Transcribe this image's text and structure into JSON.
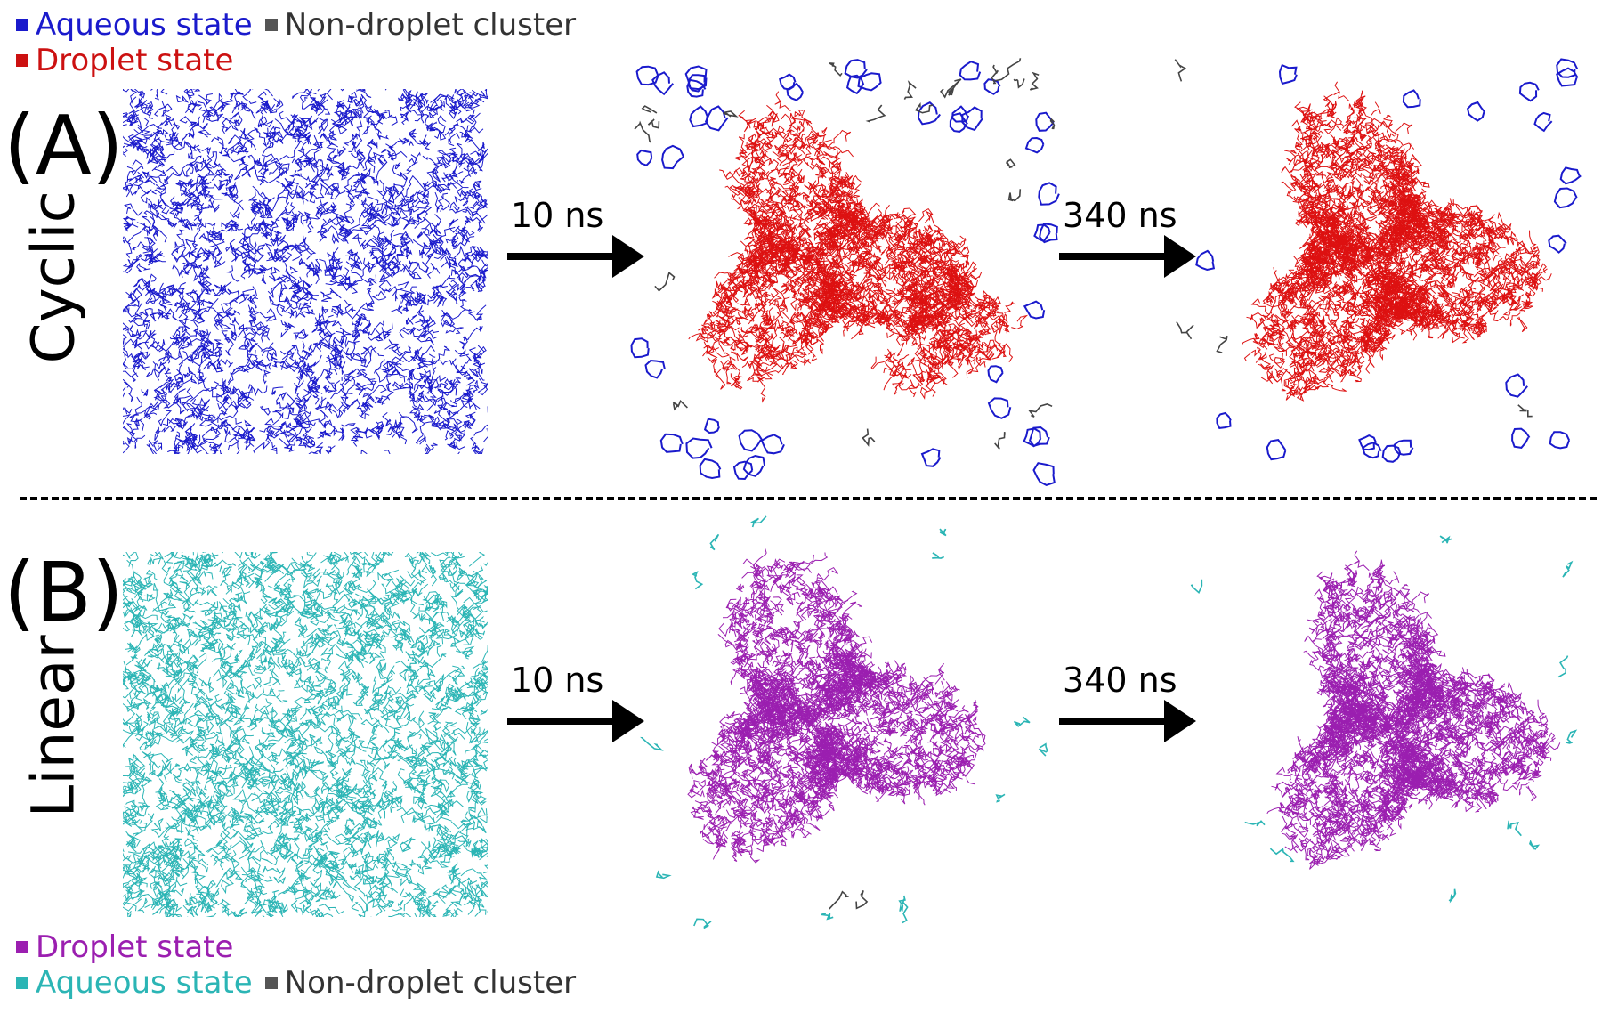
{
  "legend_top": {
    "aqueous": {
      "label": "Aqueous state",
      "color": "#1a1acc"
    },
    "non_droplet": {
      "label": "Non-droplet cluster",
      "color": "#555555"
    },
    "droplet": {
      "label": "Droplet state",
      "color": "#cc1111"
    }
  },
  "legend_bottom": {
    "droplet": {
      "label": "Droplet state",
      "color": "#9b1fb0"
    },
    "aqueous": {
      "label": "Aqueous state",
      "color": "#2bb5b5"
    },
    "non_droplet": {
      "label": "Non-droplet cluster",
      "color": "#555555"
    }
  },
  "panels": [
    {
      "tag": "(A)",
      "name": "Cyclic",
      "arrows": [
        "10 ns",
        "340 ns"
      ],
      "colors": {
        "aqueous": "#1a1acc",
        "droplet": "#dd1111",
        "cluster": "#444444"
      }
    },
    {
      "tag": "(B)",
      "name": "Linear",
      "arrows": [
        "10 ns",
        "340 ns"
      ],
      "colors": {
        "aqueous": "#2bb5b5",
        "droplet": "#9b1fb0",
        "cluster": "#444444"
      }
    }
  ]
}
